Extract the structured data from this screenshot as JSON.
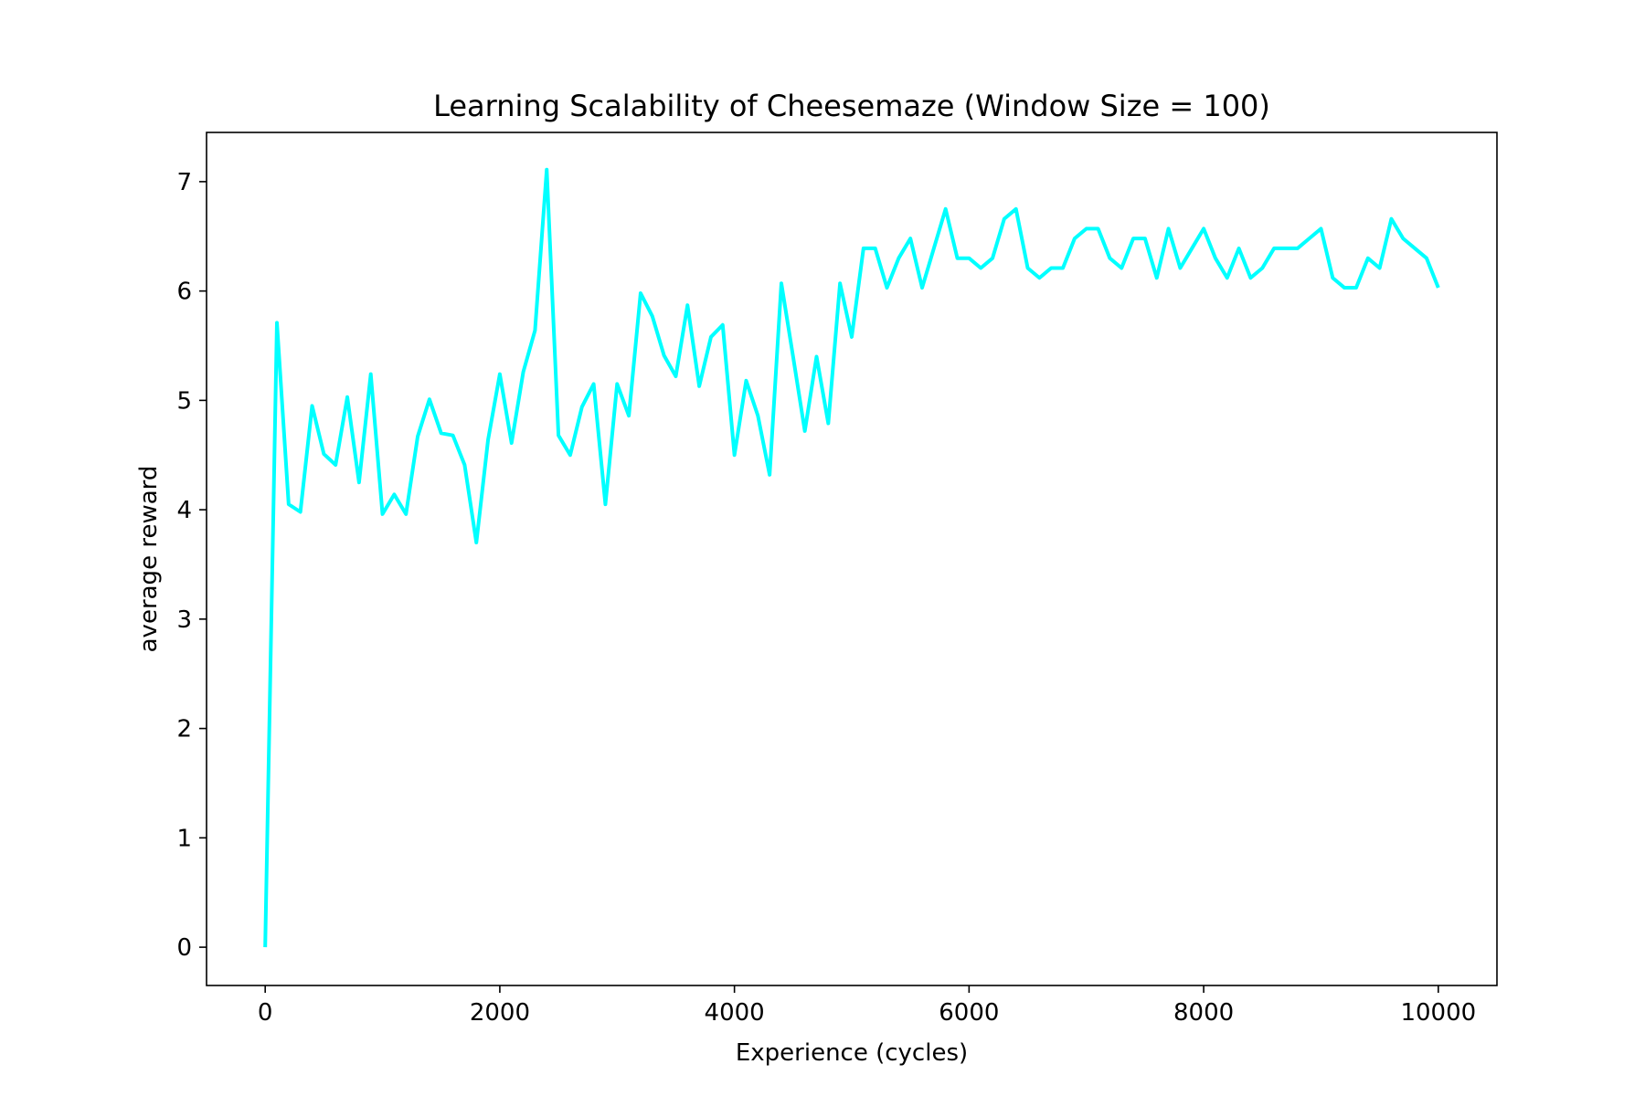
{
  "chart_data": {
    "type": "line",
    "title": "Learning Scalability of Cheesemaze (Window Size = 100)",
    "xlabel": "Experience (cycles)",
    "ylabel": "average reward",
    "xlim": [
      -500,
      10500
    ],
    "ylim": [
      -0.35,
      7.45
    ],
    "xticks": [
      0,
      2000,
      4000,
      6000,
      8000,
      10000
    ],
    "yticks": [
      0,
      1,
      2,
      3,
      4,
      5,
      6,
      7
    ],
    "grid": false,
    "legend": "none",
    "series": [
      {
        "color": "#00ffff",
        "x": [
          0,
          100,
          200,
          300,
          400,
          500,
          600,
          700,
          800,
          900,
          1000,
          1100,
          1200,
          1300,
          1400,
          1500,
          1600,
          1700,
          1800,
          1900,
          2000,
          2100,
          2200,
          2300,
          2400,
          2500,
          2600,
          2700,
          2800,
          2900,
          3000,
          3100,
          3200,
          3300,
          3400,
          3500,
          3600,
          3700,
          3800,
          3900,
          4000,
          4100,
          4200,
          4300,
          4400,
          4500,
          4600,
          4700,
          4800,
          4900,
          5000,
          5100,
          5200,
          5300,
          5400,
          5500,
          5600,
          5700,
          5800,
          5900,
          6000,
          6100,
          6200,
          6300,
          6400,
          6500,
          6600,
          6700,
          6800,
          6900,
          7000,
          7100,
          7200,
          7300,
          7400,
          7500,
          7600,
          7700,
          7800,
          7900,
          8000,
          8100,
          8200,
          8300,
          8400,
          8500,
          8600,
          8700,
          8800,
          8900,
          9000,
          9100,
          9200,
          9300,
          9400,
          9500,
          9600,
          9700,
          9800,
          9900,
          10000
        ],
        "values": [
          0.0,
          5.71,
          4.05,
          3.98,
          4.95,
          4.51,
          4.41,
          5.03,
          4.25,
          5.24,
          3.96,
          4.14,
          3.96,
          4.67,
          5.01,
          4.7,
          4.68,
          4.41,
          3.7,
          4.64,
          5.24,
          4.61,
          5.26,
          5.64,
          7.11,
          4.68,
          4.5,
          4.94,
          5.15,
          4.05,
          5.15,
          4.86,
          5.98,
          5.77,
          5.41,
          5.22,
          5.87,
          5.13,
          5.58,
          5.69,
          4.5,
          5.18,
          4.86,
          4.32,
          6.07,
          5.4,
          4.72,
          5.4,
          4.79,
          6.07,
          5.58,
          6.39,
          6.39,
          6.03,
          6.3,
          6.48,
          6.03,
          6.39,
          6.75,
          6.3,
          6.3,
          6.21,
          6.3,
          6.66,
          6.75,
          6.21,
          6.12,
          6.21,
          6.21,
          6.48,
          6.57,
          6.57,
          6.3,
          6.21,
          6.48,
          6.48,
          6.12,
          6.57,
          6.21,
          6.39,
          6.57,
          6.3,
          6.12,
          6.39,
          6.12,
          6.21,
          6.39,
          6.39,
          6.39,
          6.48,
          6.57,
          6.12,
          6.03,
          6.03,
          6.3,
          6.21,
          6.66,
          6.48,
          6.39,
          6.3,
          6.03
        ]
      }
    ]
  }
}
